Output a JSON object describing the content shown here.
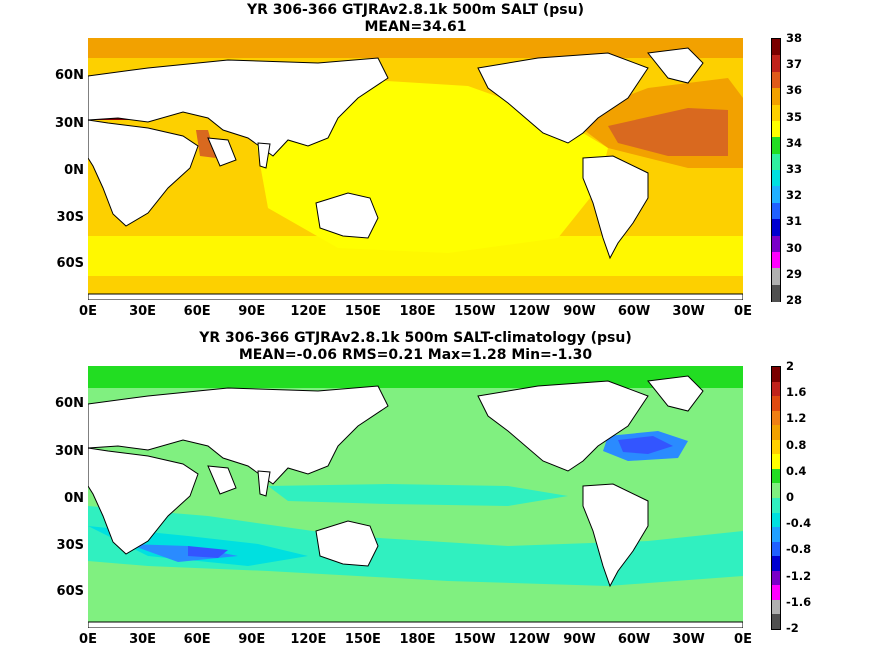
{
  "panels": [
    {
      "title_line1": "YR 306-366 GTJRAv2.8.1k 500m SALT (psu)",
      "title_line2": "MEAN=34.61",
      "colorbar": {
        "labels": [
          "38",
          "37",
          "36",
          "35",
          "34",
          "33",
          "32",
          "31",
          "30",
          "29",
          "28"
        ],
        "colors": [
          "#7a0000",
          "#c0221b",
          "#e05a1a",
          "#f2a100",
          "#fdd000",
          "#ffff00",
          "#22dd22",
          "#2ff0a0",
          "#00e0e0",
          "#20b0ff",
          "#2060ff",
          "#0000d0",
          "#7a00c8",
          "#ff00ff",
          "#b0b0b0",
          "#505050"
        ]
      }
    },
    {
      "title_line1": "YR 306-366 GTJRAv2.8.1k 500m SALT-climatology (psu)",
      "title_line2": "MEAN=-0.06   RMS=0.21   Max=1.28   Min=-1.30",
      "colorbar": {
        "labels": [
          "2",
          "1.6",
          "1.2",
          "0.8",
          "0.4",
          "0",
          "-0.4",
          "-0.8",
          "-1.2",
          "-1.6",
          "-2"
        ],
        "colors": [
          "#7a0000",
          "#c0221b",
          "#e04a10",
          "#f07f14",
          "#f2a100",
          "#ffd000",
          "#ffff00",
          "#22dd22",
          "#80f080",
          "#30f0c0",
          "#00e0e0",
          "#20a0ff",
          "#2060ff",
          "#0000d0",
          "#7a00c8",
          "#ff00ff",
          "#b0b0b0",
          "#505050"
        ]
      }
    }
  ],
  "x_ticks": [
    "0E",
    "30E",
    "60E",
    "90E",
    "120E",
    "150E",
    "180E",
    "150W",
    "120W",
    "90W",
    "60W",
    "30W",
    "0E"
  ],
  "y_ticks": [
    "60N",
    "30N",
    "0N",
    "30S",
    "60S"
  ],
  "colors": {
    "upper_main": "#ffff00",
    "upper_orange": "#f2a100",
    "upper_gold": "#fdd000",
    "upper_brown": "#d9691f",
    "upper_dark": "#8a0000",
    "lower_main": "#80f080",
    "lower_green": "#22dd22",
    "lower_teal": "#30f0c0",
    "lower_cyan": "#00e0e0",
    "lower_blue": "#2a8bff",
    "lower_darkblue": "#3355ff"
  }
}
